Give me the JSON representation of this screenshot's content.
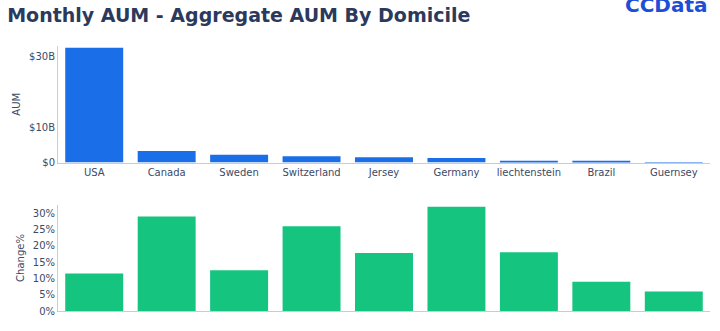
{
  "title": "Monthly AUM - Aggregate AUM By Domicile",
  "logo": "CCData",
  "chart_data": [
    {
      "type": "bar",
      "y_label": "AUM",
      "categories": [
        "USA",
        "Canada",
        "Sweden",
        "Switzerland",
        "Jersey",
        "Germany",
        "liechtenstein",
        "Brazil",
        "Guernsey"
      ],
      "values": [
        32.5,
        3.3,
        2.2,
        1.8,
        1.5,
        1.3,
        0.5,
        0.5,
        0.1
      ],
      "color": "#1a6ee8",
      "ylim": [
        0,
        33
      ],
      "yticks": [
        {
          "value": 0,
          "label": "$0"
        },
        {
          "value": 10,
          "label": "$10B"
        },
        {
          "value": 30,
          "label": "$30B"
        }
      ],
      "grid": false
    },
    {
      "type": "bar",
      "y_label": "Change%",
      "categories": [
        "USA",
        "Canada",
        "Sweden",
        "Switzerland",
        "Jersey",
        "Germany",
        "liechtenstein",
        "Brazil",
        "Guernsey"
      ],
      "values": [
        11.5,
        29,
        12.5,
        26,
        17.8,
        32,
        18,
        9,
        6
      ],
      "color": "#14c47f",
      "ylim": [
        0,
        32.5
      ],
      "yticks": [
        {
          "value": 0,
          "label": "0%"
        },
        {
          "value": 5,
          "label": "5%"
        },
        {
          "value": 10,
          "label": "10%"
        },
        {
          "value": 15,
          "label": "15%"
        },
        {
          "value": 20,
          "label": "20%"
        },
        {
          "value": 25,
          "label": "25%"
        },
        {
          "value": 30,
          "label": "30%"
        }
      ],
      "grid": false,
      "tick_labels": "y"
    }
  ]
}
